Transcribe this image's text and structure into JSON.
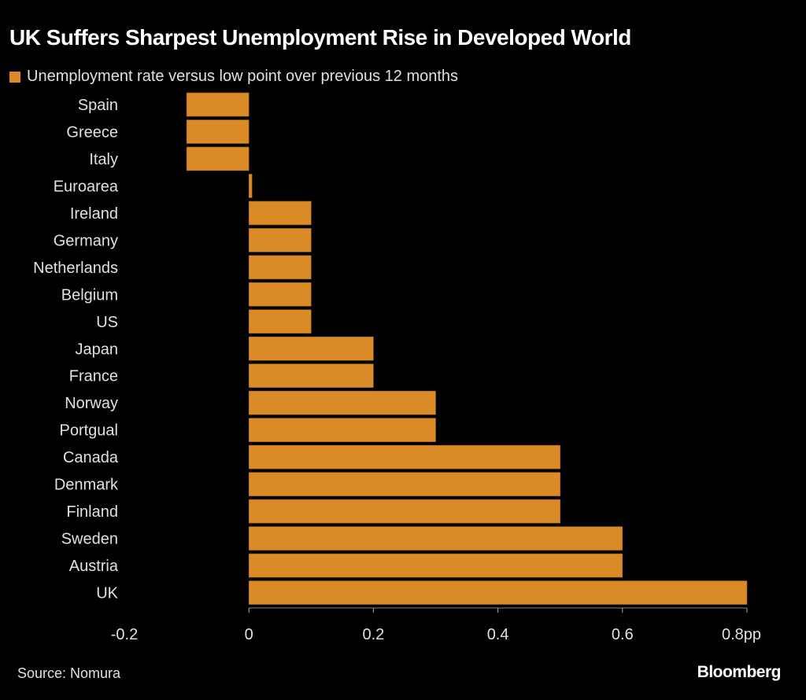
{
  "chart_data": {
    "type": "bar",
    "orientation": "horizontal",
    "title": "UK Suffers Sharpest Unemployment Rise in Developed World",
    "legend": [
      {
        "label": "Unemployment rate versus low point over previous 12 months",
        "color": "#DA8A27"
      }
    ],
    "categories": [
      "Spain",
      "Greece",
      "Italy",
      "Euroarea",
      "Ireland",
      "Germany",
      "Netherlands",
      "Belgium",
      "US",
      "Japan",
      "France",
      "Norway",
      "Portgual",
      "Canada",
      "Denmark",
      "Finland",
      "Sweden",
      "Austria",
      "UK"
    ],
    "series": [
      {
        "name": "Unemployment rate versus low point over previous 12 months",
        "values": [
          -0.1,
          -0.1,
          -0.1,
          0.005,
          0.1,
          0.1,
          0.1,
          0.1,
          0.1,
          0.2,
          0.2,
          0.3,
          0.3,
          0.5,
          0.5,
          0.5,
          0.6,
          0.6,
          0.8
        ]
      }
    ],
    "xlim": [
      -0.2,
      0.8
    ],
    "xticks": [
      -0.2,
      0,
      0.2,
      0.4,
      0.6,
      0.8
    ],
    "xtick_labels": [
      "-0.2",
      "0",
      "0.2",
      "0.4",
      "0.6",
      "0.8pp"
    ],
    "xlabel": "",
    "ylabel": "",
    "grid": false,
    "legend_position": "top-left",
    "bar_color": "#DA8A27"
  },
  "footer": {
    "source": "Source: Nomura",
    "brand": "Bloomberg"
  }
}
